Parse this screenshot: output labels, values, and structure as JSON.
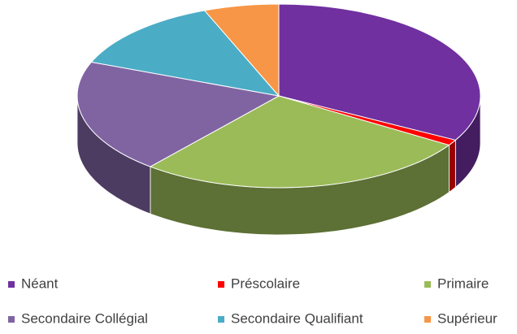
{
  "chart_data": {
    "type": "pie",
    "categories": [
      "Néant",
      "Préscolaire",
      "Primaire",
      "Secondaire Collégial",
      "Secondaire Qualifiant",
      "Supérieur"
    ],
    "values": [
      33,
      1,
      27,
      20,
      13,
      6
    ],
    "colors": [
      "#7030a0",
      "#ff0000",
      "#9bbb59",
      "#8064a2",
      "#4bacc6",
      "#f79646"
    ],
    "legend": "bottom"
  }
}
